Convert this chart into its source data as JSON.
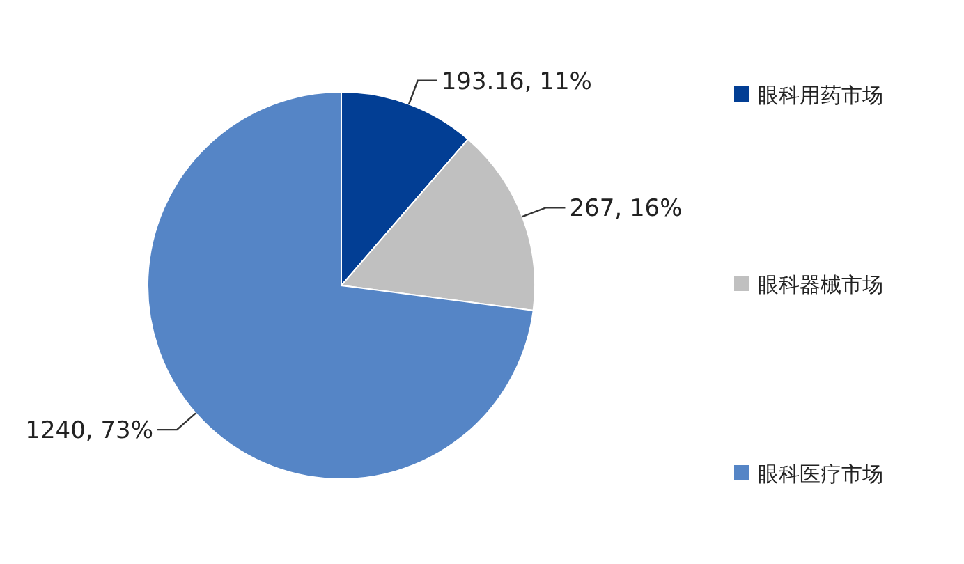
{
  "chart_data": {
    "type": "pie",
    "categories": [
      "眼科用药市场",
      "眼科器械市场",
      "眼科医疗市场"
    ],
    "values": [
      193.16,
      267,
      1240
    ],
    "colors": [
      "#023e94",
      "#c0c0c0",
      "#5585c6"
    ],
    "value_labels": [
      "193.16, 11%",
      "267, 16%",
      "1240, 73%"
    ],
    "legend": "right"
  }
}
